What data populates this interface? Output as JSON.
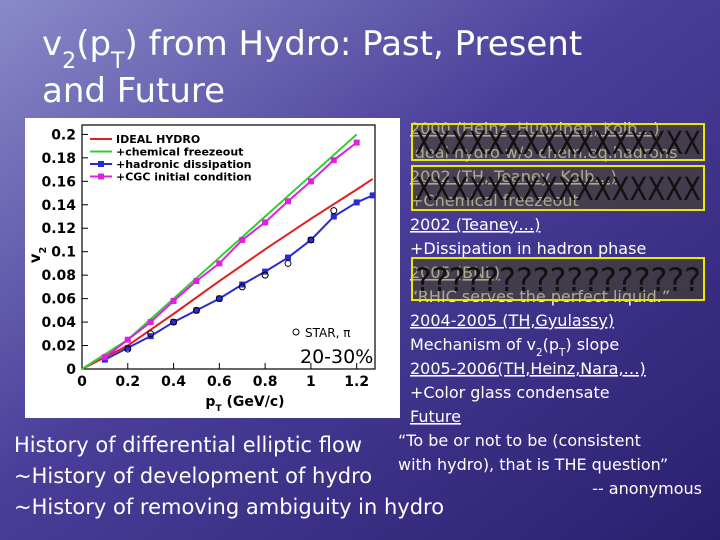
{
  "slide": {
    "title_parts": [
      "v",
      "2",
      "(p",
      "T",
      ") from Hydro: Past, Present"
    ],
    "title_line2": "and Future",
    "notes": [
      {
        "text": "2000 (Heinz, Huovinen, Kolb…)",
        "underline": true
      },
      {
        "text": "Ideal hydro w/o chem.eq.hadrons"
      },
      {
        "text": "2002 (TH, Teaney, Kolb…)",
        "underline": true
      },
      {
        "text": "+Chemical freezeout"
      },
      {
        "text": "2002 (Teaney…)",
        "underline": true
      },
      {
        "text": "+Dissipation in hadron phase"
      },
      {
        "text": "2005 (BNL)",
        "underline": true
      },
      {
        "text": "“RHIC serves the perfect liquid.”"
      },
      {
        "text": "2004-2005 (TH,Gyulassy)",
        "underline": true
      },
      {
        "parts": [
          "Mechanism of v",
          "2",
          "(p",
          "T",
          ") slope"
        ]
      },
      {
        "text": "2005-2006(TH,Heinz,Nara,…)",
        "underline": true
      },
      {
        "text": "+Color glass condensate"
      },
      {
        "text": "Future",
        "underline": true
      },
      {
        "text": "“To be or not to be (consistent"
      },
      {
        "text": "with hydro), that is THE question”"
      },
      {
        "text": "-- anonymous",
        "align": "right"
      }
    ],
    "overlays": [
      "XXXXXXXXXXXXXXXX",
      "XXXXXXXXXXXXXXXX",
      "?????????????????"
    ],
    "history": [
      "History of differential elliptic flow",
      "~History of development of hydro",
      "~History of removing ambiguity in hydro"
    ]
  },
  "chart_data": {
    "type": "line",
    "xlabel_parts": [
      "p",
      "T",
      " (GeV/c)"
    ],
    "ylabel_parts": [
      "v",
      "2"
    ],
    "xlim": [
      0,
      1.28
    ],
    "ylim": [
      0,
      0.208
    ],
    "xticks": [
      0,
      0.2,
      0.4,
      0.6,
      0.8,
      1,
      1.2
    ],
    "yticks": [
      0,
      0.02,
      0.04,
      0.06,
      0.08,
      0.1,
      0.12,
      0.14,
      0.16,
      0.18,
      0.2
    ],
    "annotations": [
      "STAR, π",
      "20-30%"
    ],
    "series": [
      {
        "name": "IDEAL HYDRO",
        "color": "#e02020",
        "marker": "none",
        "x": [
          0,
          0.2,
          0.4,
          0.6,
          0.8,
          1,
          1.2,
          1.27
        ],
        "values": [
          0,
          0.02,
          0.047,
          0.075,
          0.102,
          0.128,
          0.153,
          0.162
        ]
      },
      {
        "name": "+chemical freezeout",
        "color": "#33cc33",
        "marker": "none",
        "x": [
          0,
          0.2,
          0.4,
          0.6,
          0.8,
          1,
          1.2
        ],
        "values": [
          0,
          0.025,
          0.06,
          0.095,
          0.13,
          0.165,
          0.2
        ]
      },
      {
        "name": "+hadronic dissipation",
        "color": "#2a2ad0",
        "marker": "square",
        "x": [
          0.1,
          0.2,
          0.3,
          0.4,
          0.5,
          0.6,
          0.7,
          0.8,
          0.9,
          1,
          1.1,
          1.2,
          1.27
        ],
        "values": [
          0.008,
          0.018,
          0.028,
          0.04,
          0.05,
          0.06,
          0.072,
          0.083,
          0.095,
          0.11,
          0.13,
          0.142,
          0.148
        ]
      },
      {
        "name": "+CGC initial condition",
        "color": "#e020e0",
        "marker": "square",
        "x": [
          0.1,
          0.2,
          0.3,
          0.4,
          0.5,
          0.6,
          0.7,
          0.8,
          0.9,
          1,
          1.1,
          1.2
        ],
        "values": [
          0.01,
          0.025,
          0.04,
          0.058,
          0.075,
          0.09,
          0.11,
          0.125,
          0.143,
          0.16,
          0.178,
          0.193
        ]
      },
      {
        "name": "STAR",
        "color": "#000000",
        "marker": "circle",
        "line": false,
        "x": [
          0.2,
          0.3,
          0.4,
          0.5,
          0.6,
          0.7,
          0.8,
          0.9,
          1,
          1.1
        ],
        "values": [
          0.017,
          0.03,
          0.04,
          0.05,
          0.06,
          0.07,
          0.08,
          0.09,
          0.11,
          0.135
        ]
      }
    ]
  }
}
